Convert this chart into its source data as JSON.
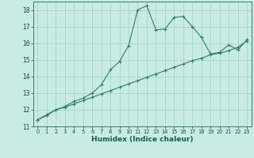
{
  "x": [
    0,
    1,
    2,
    3,
    4,
    5,
    6,
    7,
    8,
    9,
    10,
    11,
    12,
    13,
    14,
    15,
    16,
    17,
    18,
    19,
    20,
    21,
    22,
    23
  ],
  "line1": [
    11.4,
    11.7,
    12.0,
    12.2,
    12.5,
    12.7,
    13.0,
    13.5,
    14.4,
    14.9,
    15.85,
    18.0,
    18.25,
    16.8,
    16.85,
    17.55,
    17.6,
    17.0,
    16.35,
    15.35,
    15.45,
    15.9,
    15.6,
    16.2
  ],
  "line2": [
    11.4,
    11.65,
    12.0,
    12.15,
    12.35,
    12.55,
    12.75,
    12.95,
    13.15,
    13.35,
    13.55,
    13.75,
    13.95,
    14.15,
    14.35,
    14.55,
    14.75,
    14.95,
    15.1,
    15.3,
    15.4,
    15.55,
    15.75,
    16.15
  ],
  "line_color": "#2e7d6e",
  "bg_color": "#c8ebe3",
  "grid_color": "#aad4cc",
  "xlabel": "Humidex (Indice chaleur)",
  "xlim": [
    -0.5,
    23.5
  ],
  "ylim": [
    11,
    18.5
  ],
  "yticks": [
    11,
    12,
    13,
    14,
    15,
    16,
    17,
    18
  ],
  "xticks": [
    0,
    1,
    2,
    3,
    4,
    5,
    6,
    7,
    8,
    9,
    10,
    11,
    12,
    13,
    14,
    15,
    16,
    17,
    18,
    19,
    20,
    21,
    22,
    23
  ]
}
